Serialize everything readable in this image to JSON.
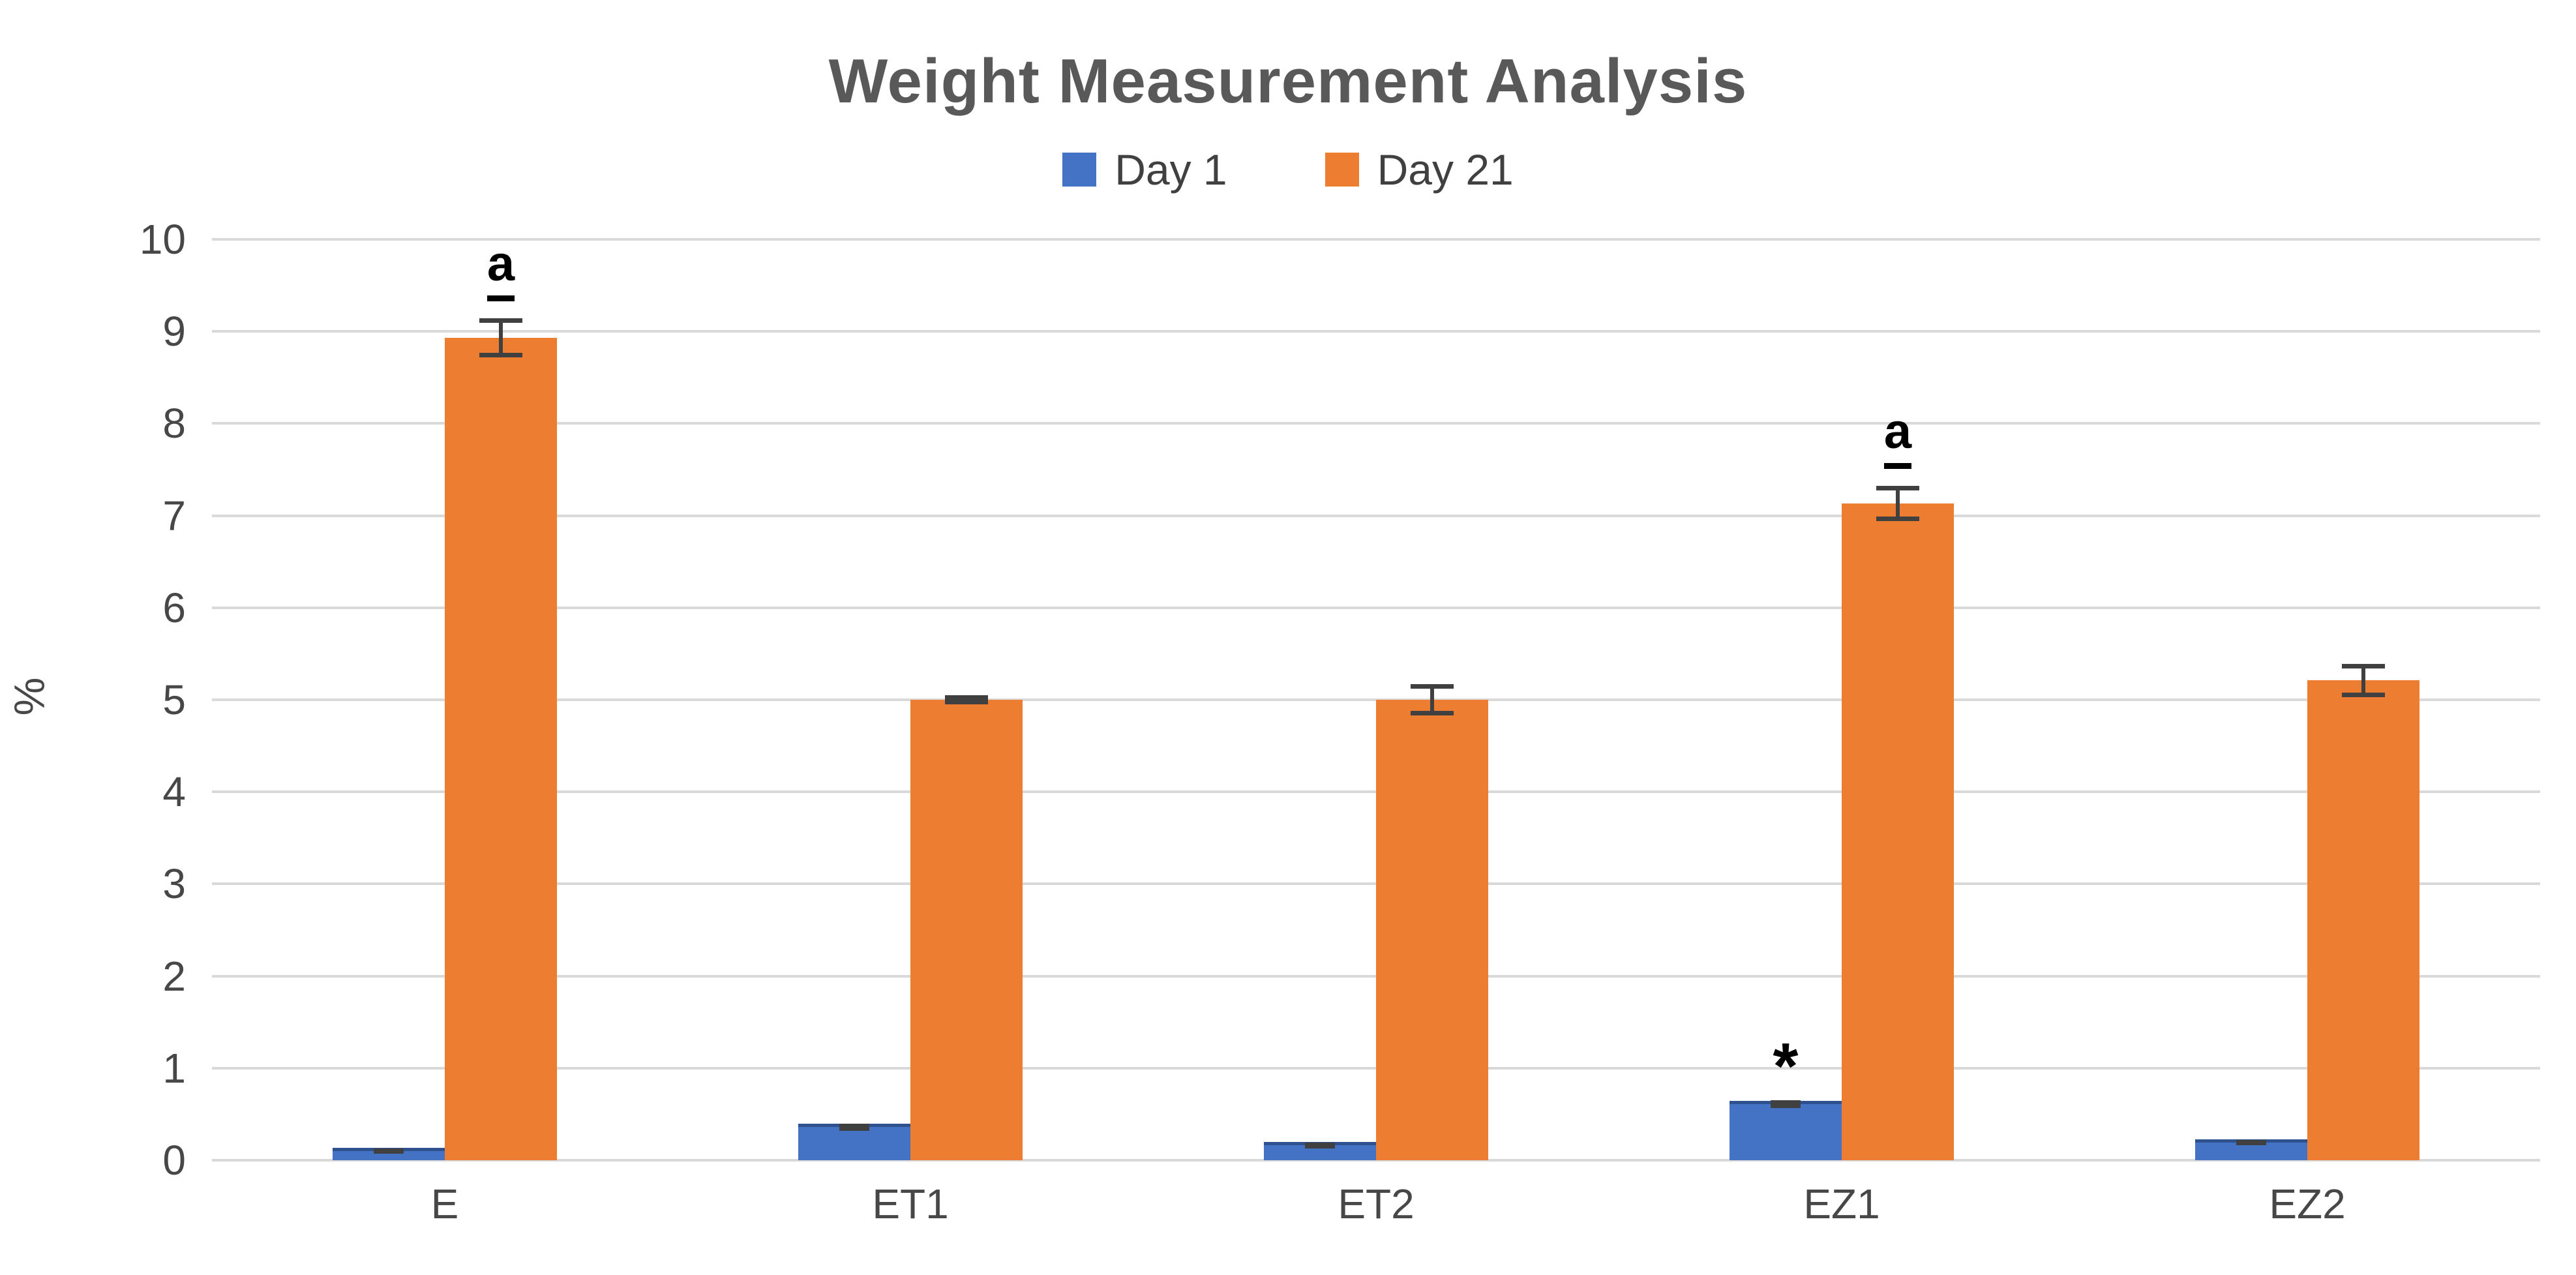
{
  "chart_data": {
    "type": "bar",
    "title": "Weight Measurement Analysis",
    "xlabel": "",
    "ylabel": "%",
    "ylim": [
      0,
      10
    ],
    "yticks": [
      0,
      1,
      2,
      3,
      4,
      5,
      6,
      7,
      8,
      9,
      10
    ],
    "grid": true,
    "legend_position": "top",
    "categories": [
      "E",
      "ET1",
      "ET2",
      "EZ1",
      "EZ2"
    ],
    "series": [
      {
        "name": "Day 1",
        "color": "#4472C4",
        "values": [
          0.1,
          0.36,
          0.16,
          0.61,
          0.19
        ],
        "errors": [
          0.03,
          0.04,
          0.03,
          0.04,
          0.03
        ]
      },
      {
        "name": "Day 21",
        "color": "#ED7D31",
        "values": [
          8.93,
          5.0,
          5.0,
          7.13,
          5.21
        ],
        "errors": [
          0.21,
          0.05,
          0.17,
          0.19,
          0.18
        ]
      }
    ],
    "annotations": [
      {
        "text": "a",
        "underline": true,
        "category": "E",
        "series": "Day 21"
      },
      {
        "text": "*",
        "underline": false,
        "category": "EZ1",
        "series": "Day 1"
      },
      {
        "text": "a",
        "underline": true,
        "category": "EZ1",
        "series": "Day 21"
      }
    ],
    "gridline_color": "#D9D9D9",
    "error_bar_color": "#404040",
    "title_color": "#595959"
  }
}
